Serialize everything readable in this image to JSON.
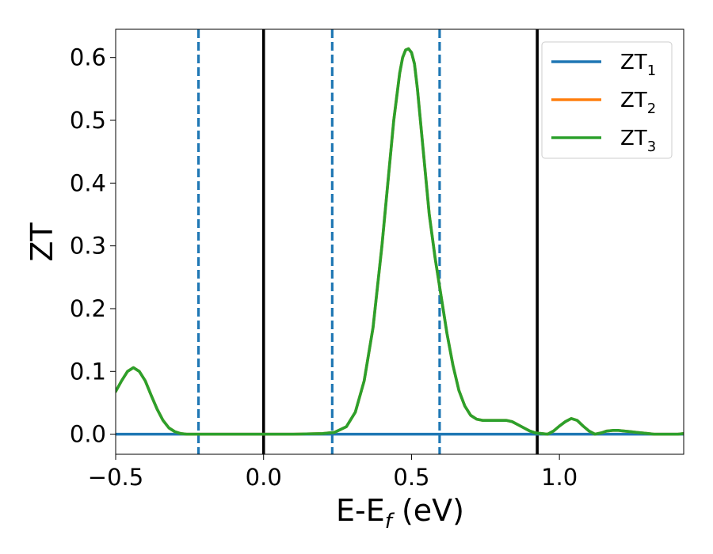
{
  "chart_data": {
    "type": "line",
    "title": "",
    "xlabel": "E-E",
    "xlabel_sub": "f",
    "xlabel_unit": " (eV)",
    "ylabel": "ZT",
    "xlim": [
      -0.5,
      1.42
    ],
    "ylim": [
      -0.032,
      0.645
    ],
    "xticks": [
      -0.5,
      0.0,
      0.5,
      1.0
    ],
    "xtick_labels": [
      "−0.5",
      "0.0",
      "0.5",
      "1.0"
    ],
    "yticks": [
      0.0,
      0.1,
      0.2,
      0.3,
      0.4,
      0.5,
      0.6
    ],
    "ytick_labels": [
      "0.0",
      "0.1",
      "0.2",
      "0.3",
      "0.4",
      "0.5",
      "0.6"
    ],
    "grid": false,
    "legend_position": "top-right",
    "series": [
      {
        "name": "ZT",
        "name_sub": "1",
        "color": "#1f77b4",
        "x": [
          -0.5,
          1.42
        ],
        "y": [
          0.0,
          0.0
        ]
      },
      {
        "name": "ZT",
        "name_sub": "2",
        "color": "#ff7f0e",
        "x": [
          -0.5,
          -0.48,
          -0.46,
          -0.44,
          -0.42,
          -0.4,
          -0.38,
          -0.36,
          -0.34,
          -0.32,
          -0.3,
          -0.28,
          -0.26,
          -0.24,
          -0.22,
          -0.2,
          -0.1,
          0.0,
          0.1,
          0.2,
          0.24,
          0.28,
          0.31,
          0.34,
          0.37,
          0.4,
          0.42,
          0.44,
          0.46,
          0.47,
          0.48,
          0.49,
          0.5,
          0.51,
          0.52,
          0.54,
          0.56,
          0.58,
          0.6,
          0.62,
          0.64,
          0.66,
          0.68,
          0.7,
          0.72,
          0.74,
          0.76,
          0.78,
          0.8,
          0.82,
          0.84,
          0.86,
          0.88,
          0.9,
          0.92,
          0.94,
          0.96,
          0.98,
          1.0,
          1.02,
          1.04,
          1.06,
          1.08,
          1.1,
          1.12,
          1.14,
          1.16,
          1.18,
          1.2,
          1.22,
          1.24,
          1.26,
          1.28,
          1.3,
          1.32,
          1.34,
          1.36,
          1.38,
          1.4,
          1.42
        ],
        "y": [
          0.068,
          0.085,
          0.1,
          0.106,
          0.1,
          0.085,
          0.062,
          0.04,
          0.022,
          0.01,
          0.004,
          0.001,
          0.0,
          0.0,
          0.0,
          0.0,
          0.0,
          0.0,
          0.0,
          0.001,
          0.003,
          0.012,
          0.035,
          0.085,
          0.17,
          0.3,
          0.4,
          0.5,
          0.575,
          0.6,
          0.612,
          0.614,
          0.608,
          0.59,
          0.55,
          0.45,
          0.35,
          0.28,
          0.22,
          0.16,
          0.11,
          0.07,
          0.045,
          0.03,
          0.024,
          0.022,
          0.022,
          0.022,
          0.022,
          0.022,
          0.02,
          0.015,
          0.01,
          0.005,
          0.002,
          0.001,
          0.0,
          0.005,
          0.013,
          0.02,
          0.025,
          0.022,
          0.013,
          0.005,
          0.0,
          0.002,
          0.005,
          0.006,
          0.006,
          0.005,
          0.004,
          0.003,
          0.002,
          0.001,
          0.0,
          0.0,
          0.0,
          0.0,
          0.0,
          0.001
        ]
      },
      {
        "name": "ZT",
        "name_sub": "3",
        "color": "#2ca02c",
        "x": [
          -0.5,
          -0.48,
          -0.46,
          -0.44,
          -0.42,
          -0.4,
          -0.38,
          -0.36,
          -0.34,
          -0.32,
          -0.3,
          -0.28,
          -0.26,
          -0.24,
          -0.22,
          -0.2,
          -0.1,
          0.0,
          0.1,
          0.2,
          0.24,
          0.28,
          0.31,
          0.34,
          0.37,
          0.4,
          0.42,
          0.44,
          0.46,
          0.47,
          0.48,
          0.49,
          0.5,
          0.51,
          0.52,
          0.54,
          0.56,
          0.58,
          0.6,
          0.62,
          0.64,
          0.66,
          0.68,
          0.7,
          0.72,
          0.74,
          0.76,
          0.78,
          0.8,
          0.82,
          0.84,
          0.86,
          0.88,
          0.9,
          0.92,
          0.94,
          0.96,
          0.98,
          1.0,
          1.02,
          1.04,
          1.06,
          1.08,
          1.1,
          1.12,
          1.14,
          1.16,
          1.18,
          1.2,
          1.22,
          1.24,
          1.26,
          1.28,
          1.3,
          1.32,
          1.34,
          1.36,
          1.38,
          1.4,
          1.42
        ],
        "y": [
          0.068,
          0.085,
          0.1,
          0.106,
          0.1,
          0.085,
          0.062,
          0.04,
          0.022,
          0.01,
          0.004,
          0.001,
          0.0,
          0.0,
          0.0,
          0.0,
          0.0,
          0.0,
          0.0,
          0.001,
          0.003,
          0.012,
          0.035,
          0.085,
          0.17,
          0.3,
          0.4,
          0.5,
          0.575,
          0.6,
          0.612,
          0.614,
          0.608,
          0.59,
          0.55,
          0.45,
          0.35,
          0.28,
          0.22,
          0.16,
          0.11,
          0.07,
          0.045,
          0.03,
          0.024,
          0.022,
          0.022,
          0.022,
          0.022,
          0.022,
          0.02,
          0.015,
          0.01,
          0.005,
          0.002,
          0.001,
          0.0,
          0.005,
          0.013,
          0.02,
          0.025,
          0.022,
          0.013,
          0.005,
          0.0,
          0.002,
          0.005,
          0.006,
          0.006,
          0.005,
          0.004,
          0.003,
          0.002,
          0.001,
          0.0,
          0.0,
          0.0,
          0.0,
          0.0,
          0.001
        ]
      }
    ],
    "vlines": [
      {
        "x": 0.0,
        "style": "solid",
        "color": "#000000"
      },
      {
        "x": 0.925,
        "style": "solid",
        "color": "#000000"
      },
      {
        "x": -0.22,
        "style": "dashed",
        "color": "#1f77b4"
      },
      {
        "x": 0.232,
        "style": "dashed",
        "color": "#1f77b4"
      },
      {
        "x": 0.595,
        "style": "dashed",
        "color": "#1f77b4"
      }
    ]
  }
}
